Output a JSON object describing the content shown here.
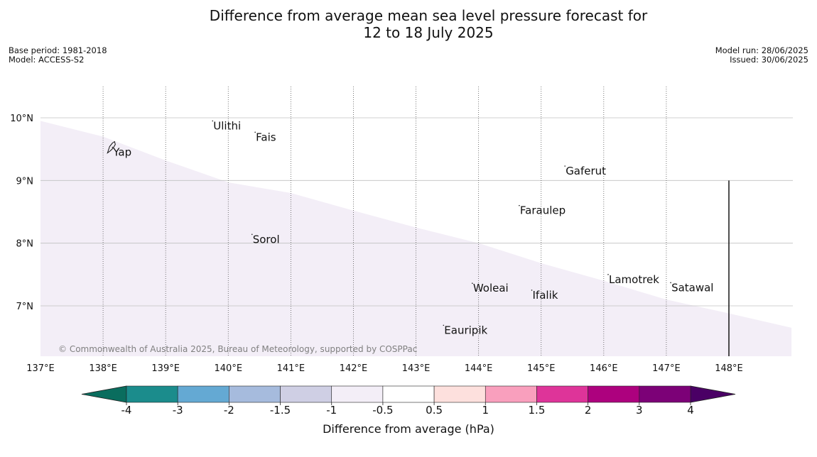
{
  "title": {
    "line1": "Difference from average mean sea level pressure forecast for",
    "line2": "12 to 18 July 2025"
  },
  "meta_left": {
    "base_period": "Base period: 1981-2018",
    "model": "Model: ACCESS-S2"
  },
  "meta_right": {
    "model_run": "Model run: 28/06/2025",
    "issued": "Issued: 30/06/2025"
  },
  "map": {
    "lon_ticks": [
      "137°E",
      "138°E",
      "139°E",
      "140°E",
      "141°E",
      "142°E",
      "143°E",
      "144°E",
      "145°E",
      "146°E",
      "147°E",
      "148°E"
    ],
    "lon_values": [
      137,
      138,
      139,
      140,
      141,
      142,
      143,
      144,
      145,
      146,
      147,
      148
    ],
    "lat_ticks": [
      "10°N",
      "9°N",
      "8°N",
      "7°N"
    ],
    "lat_values": [
      10,
      9,
      8,
      7
    ],
    "extent": {
      "lon": [
        137,
        149
      ],
      "lat": [
        6.2,
        10.5
      ]
    },
    "places": [
      {
        "name": "Ulithi",
        "lon": 139.75,
        "lat": 9.95
      },
      {
        "name": "Fais",
        "lon": 140.43,
        "lat": 9.77
      },
      {
        "name": "Yap",
        "lon": 138.15,
        "lat": 9.53
      },
      {
        "name": "Gaferut",
        "lon": 145.38,
        "lat": 9.23
      },
      {
        "name": "Faraulep",
        "lon": 144.65,
        "lat": 8.6
      },
      {
        "name": "Sorol",
        "lon": 140.38,
        "lat": 8.14
      },
      {
        "name": "Lamotrek",
        "lon": 146.07,
        "lat": 7.5
      },
      {
        "name": "Woleai",
        "lon": 143.9,
        "lat": 7.36
      },
      {
        "name": "Ifalik",
        "lon": 144.85,
        "lat": 7.25
      },
      {
        "name": "Satawal",
        "lon": 147.07,
        "lat": 7.37
      },
      {
        "name": "Eauripik",
        "lon": 143.44,
        "lat": 6.69
      }
    ],
    "shaded_region": {
      "bin": "-1 to -0.5",
      "boundary": [
        [
          137,
          9.95
        ],
        [
          138,
          9.7
        ],
        [
          139,
          9.32
        ],
        [
          140,
          8.97
        ],
        [
          141,
          8.8
        ],
        [
          142,
          8.52
        ],
        [
          143,
          8.25
        ],
        [
          144,
          8.0
        ],
        [
          145,
          7.68
        ],
        [
          146,
          7.4
        ],
        [
          147,
          7.1
        ],
        [
          148,
          6.88
        ],
        [
          149,
          6.65
        ]
      ]
    },
    "copyright": "© Commonwealth of Australia 2025, Bureau of Meteorology, supported by COSPPac",
    "colors": {
      "grid": "#c0c0c0",
      "meridian": "#555555",
      "coast": "#111111",
      "copyright": "#808080"
    }
  },
  "colorbar": {
    "label": "Difference from average (hPa)",
    "ticks": [
      "-4",
      "-3",
      "-2",
      "-1.5",
      "-1",
      "-0.5",
      "0.5",
      "1",
      "1.5",
      "2",
      "3",
      "4"
    ],
    "colors": [
      "#1b8c8c",
      "#64a9d3",
      "#a6bbdd",
      "#cfcfe4",
      "#f3eef7",
      "#ffffff",
      "#fde0dd",
      "#f99fbd",
      "#de3499",
      "#ad017e",
      "#7c0177"
    ],
    "under_color": "#0a6d5e",
    "over_color": "#4a0065"
  }
}
